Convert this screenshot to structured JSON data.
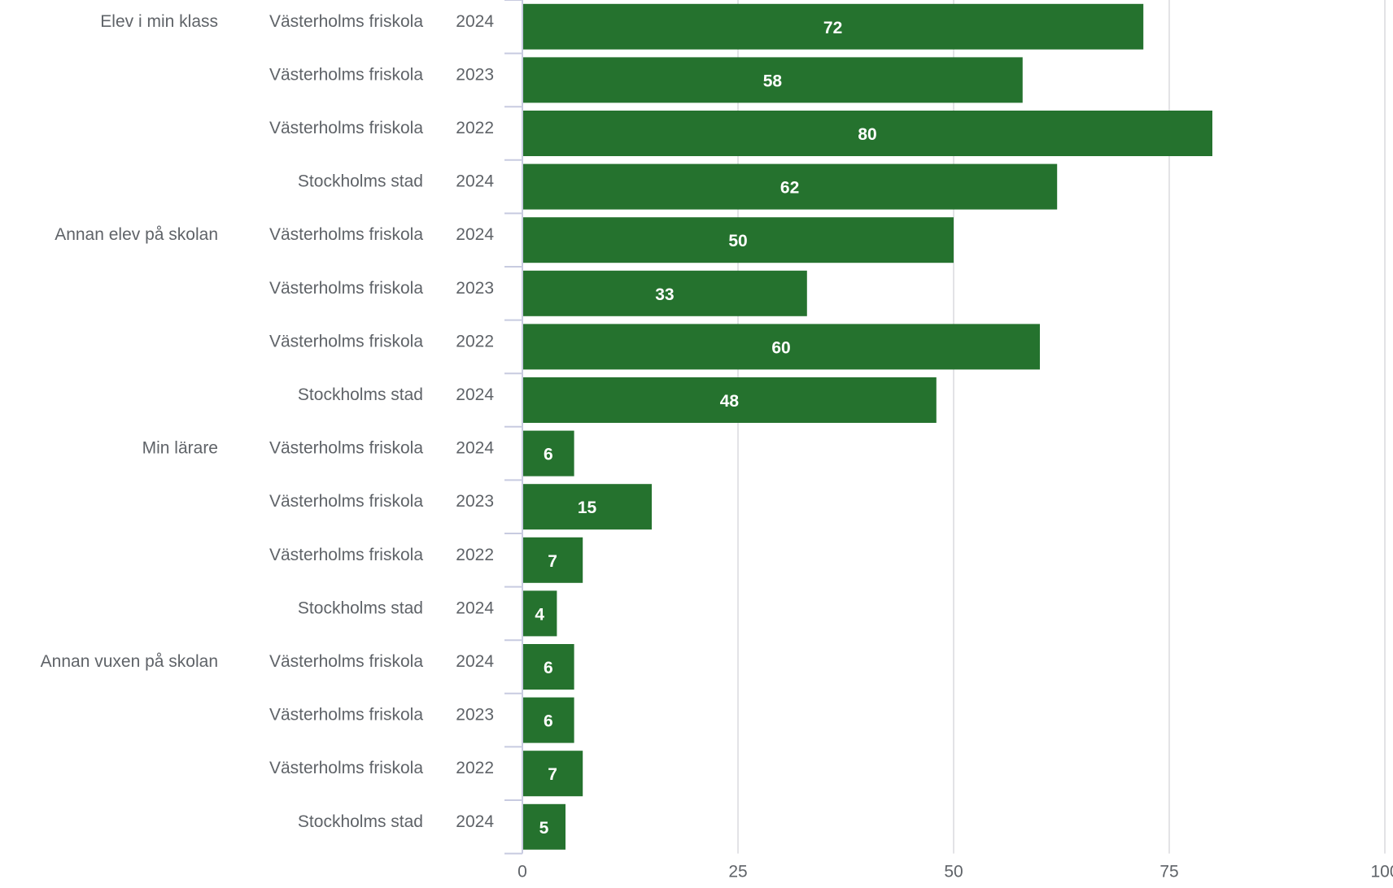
{
  "chart_data": {
    "type": "bar",
    "orientation": "horizontal",
    "xlim": [
      0,
      100
    ],
    "x_ticks": [
      "0",
      "25",
      "50",
      "75",
      "100"
    ],
    "grid": true,
    "bar_color": "#25722e",
    "rows": [
      {
        "group": "Elev i min klass",
        "entity": "Västerholms friskola",
        "year": "2024",
        "value": 72
      },
      {
        "group": "",
        "entity": "Västerholms friskola",
        "year": "2023",
        "value": 58
      },
      {
        "group": "",
        "entity": "Västerholms friskola",
        "year": "2022",
        "value": 80
      },
      {
        "group": "",
        "entity": "Stockholms stad",
        "year": "2024",
        "value": 62
      },
      {
        "group": "Annan elev på skolan",
        "entity": "Västerholms friskola",
        "year": "2024",
        "value": 50
      },
      {
        "group": "",
        "entity": "Västerholms friskola",
        "year": "2023",
        "value": 33
      },
      {
        "group": "",
        "entity": "Västerholms friskola",
        "year": "2022",
        "value": 60
      },
      {
        "group": "",
        "entity": "Stockholms stad",
        "year": "2024",
        "value": 48
      },
      {
        "group": "Min lärare",
        "entity": "Västerholms friskola",
        "year": "2024",
        "value": 6
      },
      {
        "group": "",
        "entity": "Västerholms friskola",
        "year": "2023",
        "value": 15
      },
      {
        "group": "",
        "entity": "Västerholms friskola",
        "year": "2022",
        "value": 7
      },
      {
        "group": "",
        "entity": "Stockholms stad",
        "year": "2024",
        "value": 4
      },
      {
        "group": "Annan vuxen på skolan",
        "entity": "Västerholms friskola",
        "year": "2024",
        "value": 6
      },
      {
        "group": "",
        "entity": "Västerholms friskola",
        "year": "2023",
        "value": 6
      },
      {
        "group": "",
        "entity": "Västerholms friskola",
        "year": "2022",
        "value": 7
      },
      {
        "group": "",
        "entity": "Stockholms stad",
        "year": "2024",
        "value": 5
      }
    ]
  }
}
